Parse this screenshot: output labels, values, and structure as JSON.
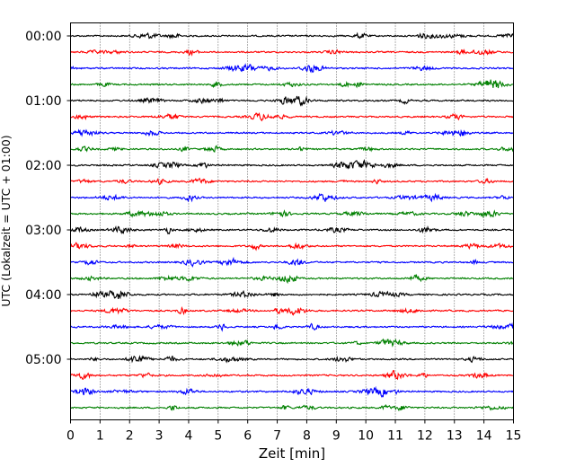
{
  "chart_data": {
    "type": "line",
    "title": "",
    "xlabel": "Zeit  [min]",
    "ylabel": "UTC (Lokalzeit = UTC + 01:00)",
    "xlim": [
      0,
      15
    ],
    "x_ticks": [
      "0",
      "1",
      "2",
      "3",
      "4",
      "5",
      "6",
      "7",
      "8",
      "9",
      "10",
      "11",
      "12",
      "13",
      "14",
      "15"
    ],
    "y_ticks": [
      "00:00",
      "01:00",
      "02:00",
      "03:00",
      "04:00",
      "05:00"
    ],
    "y_tick_rows": [
      0,
      4,
      8,
      12,
      16,
      20
    ],
    "trace_count": 24,
    "trace_interval_minutes": 15,
    "trace_colors": [
      "#000000",
      "#ff0000",
      "#0000ff",
      "#008000"
    ],
    "vertical_grid": "dotted",
    "legend": "none"
  }
}
